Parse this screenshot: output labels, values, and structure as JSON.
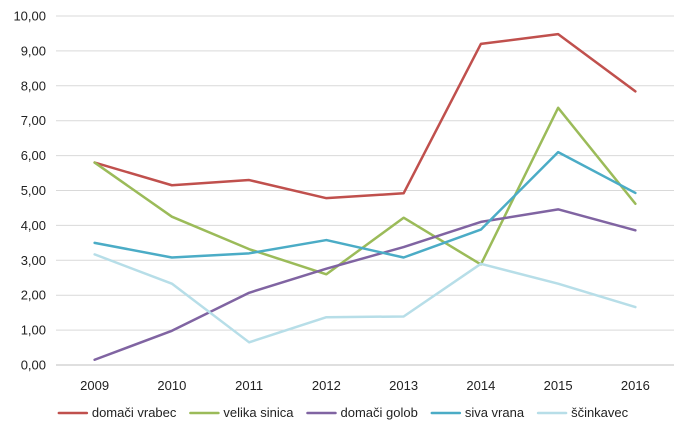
{
  "chart_data": {
    "type": "line",
    "title": "",
    "xlabel": "",
    "ylabel": "",
    "categories": [
      "2009",
      "2010",
      "2011",
      "2012",
      "2013",
      "2014",
      "2015",
      "2016"
    ],
    "ylim": [
      0,
      10
    ],
    "y_ticks": [
      "0,00",
      "1,00",
      "2,00",
      "3,00",
      "4,00",
      "5,00",
      "6,00",
      "7,00",
      "8,00",
      "9,00",
      "10,00"
    ],
    "grid": true,
    "legend_position": "bottom",
    "series": [
      {
        "name": "domači vrabec",
        "color": "#c0504d",
        "values": [
          5.8,
          5.15,
          5.3,
          4.78,
          4.92,
          9.2,
          9.48,
          7.84
        ]
      },
      {
        "name": "velika sinica",
        "color": "#9bbb59",
        "values": [
          5.8,
          4.25,
          3.32,
          2.6,
          4.22,
          2.88,
          7.37,
          4.62
        ]
      },
      {
        "name": "domači golob",
        "color": "#8064a2",
        "values": [
          0.15,
          0.98,
          2.07,
          2.76,
          3.38,
          4.1,
          4.46,
          3.86
        ]
      },
      {
        "name": "siva vrana",
        "color": "#4bacc6",
        "values": [
          3.5,
          3.08,
          3.2,
          3.58,
          3.08,
          3.88,
          6.1,
          4.93
        ]
      },
      {
        "name": "ščinkavec",
        "color": "#b7dee8",
        "values": [
          3.17,
          2.33,
          0.65,
          1.37,
          1.39,
          2.9,
          2.33,
          1.66
        ]
      }
    ]
  }
}
